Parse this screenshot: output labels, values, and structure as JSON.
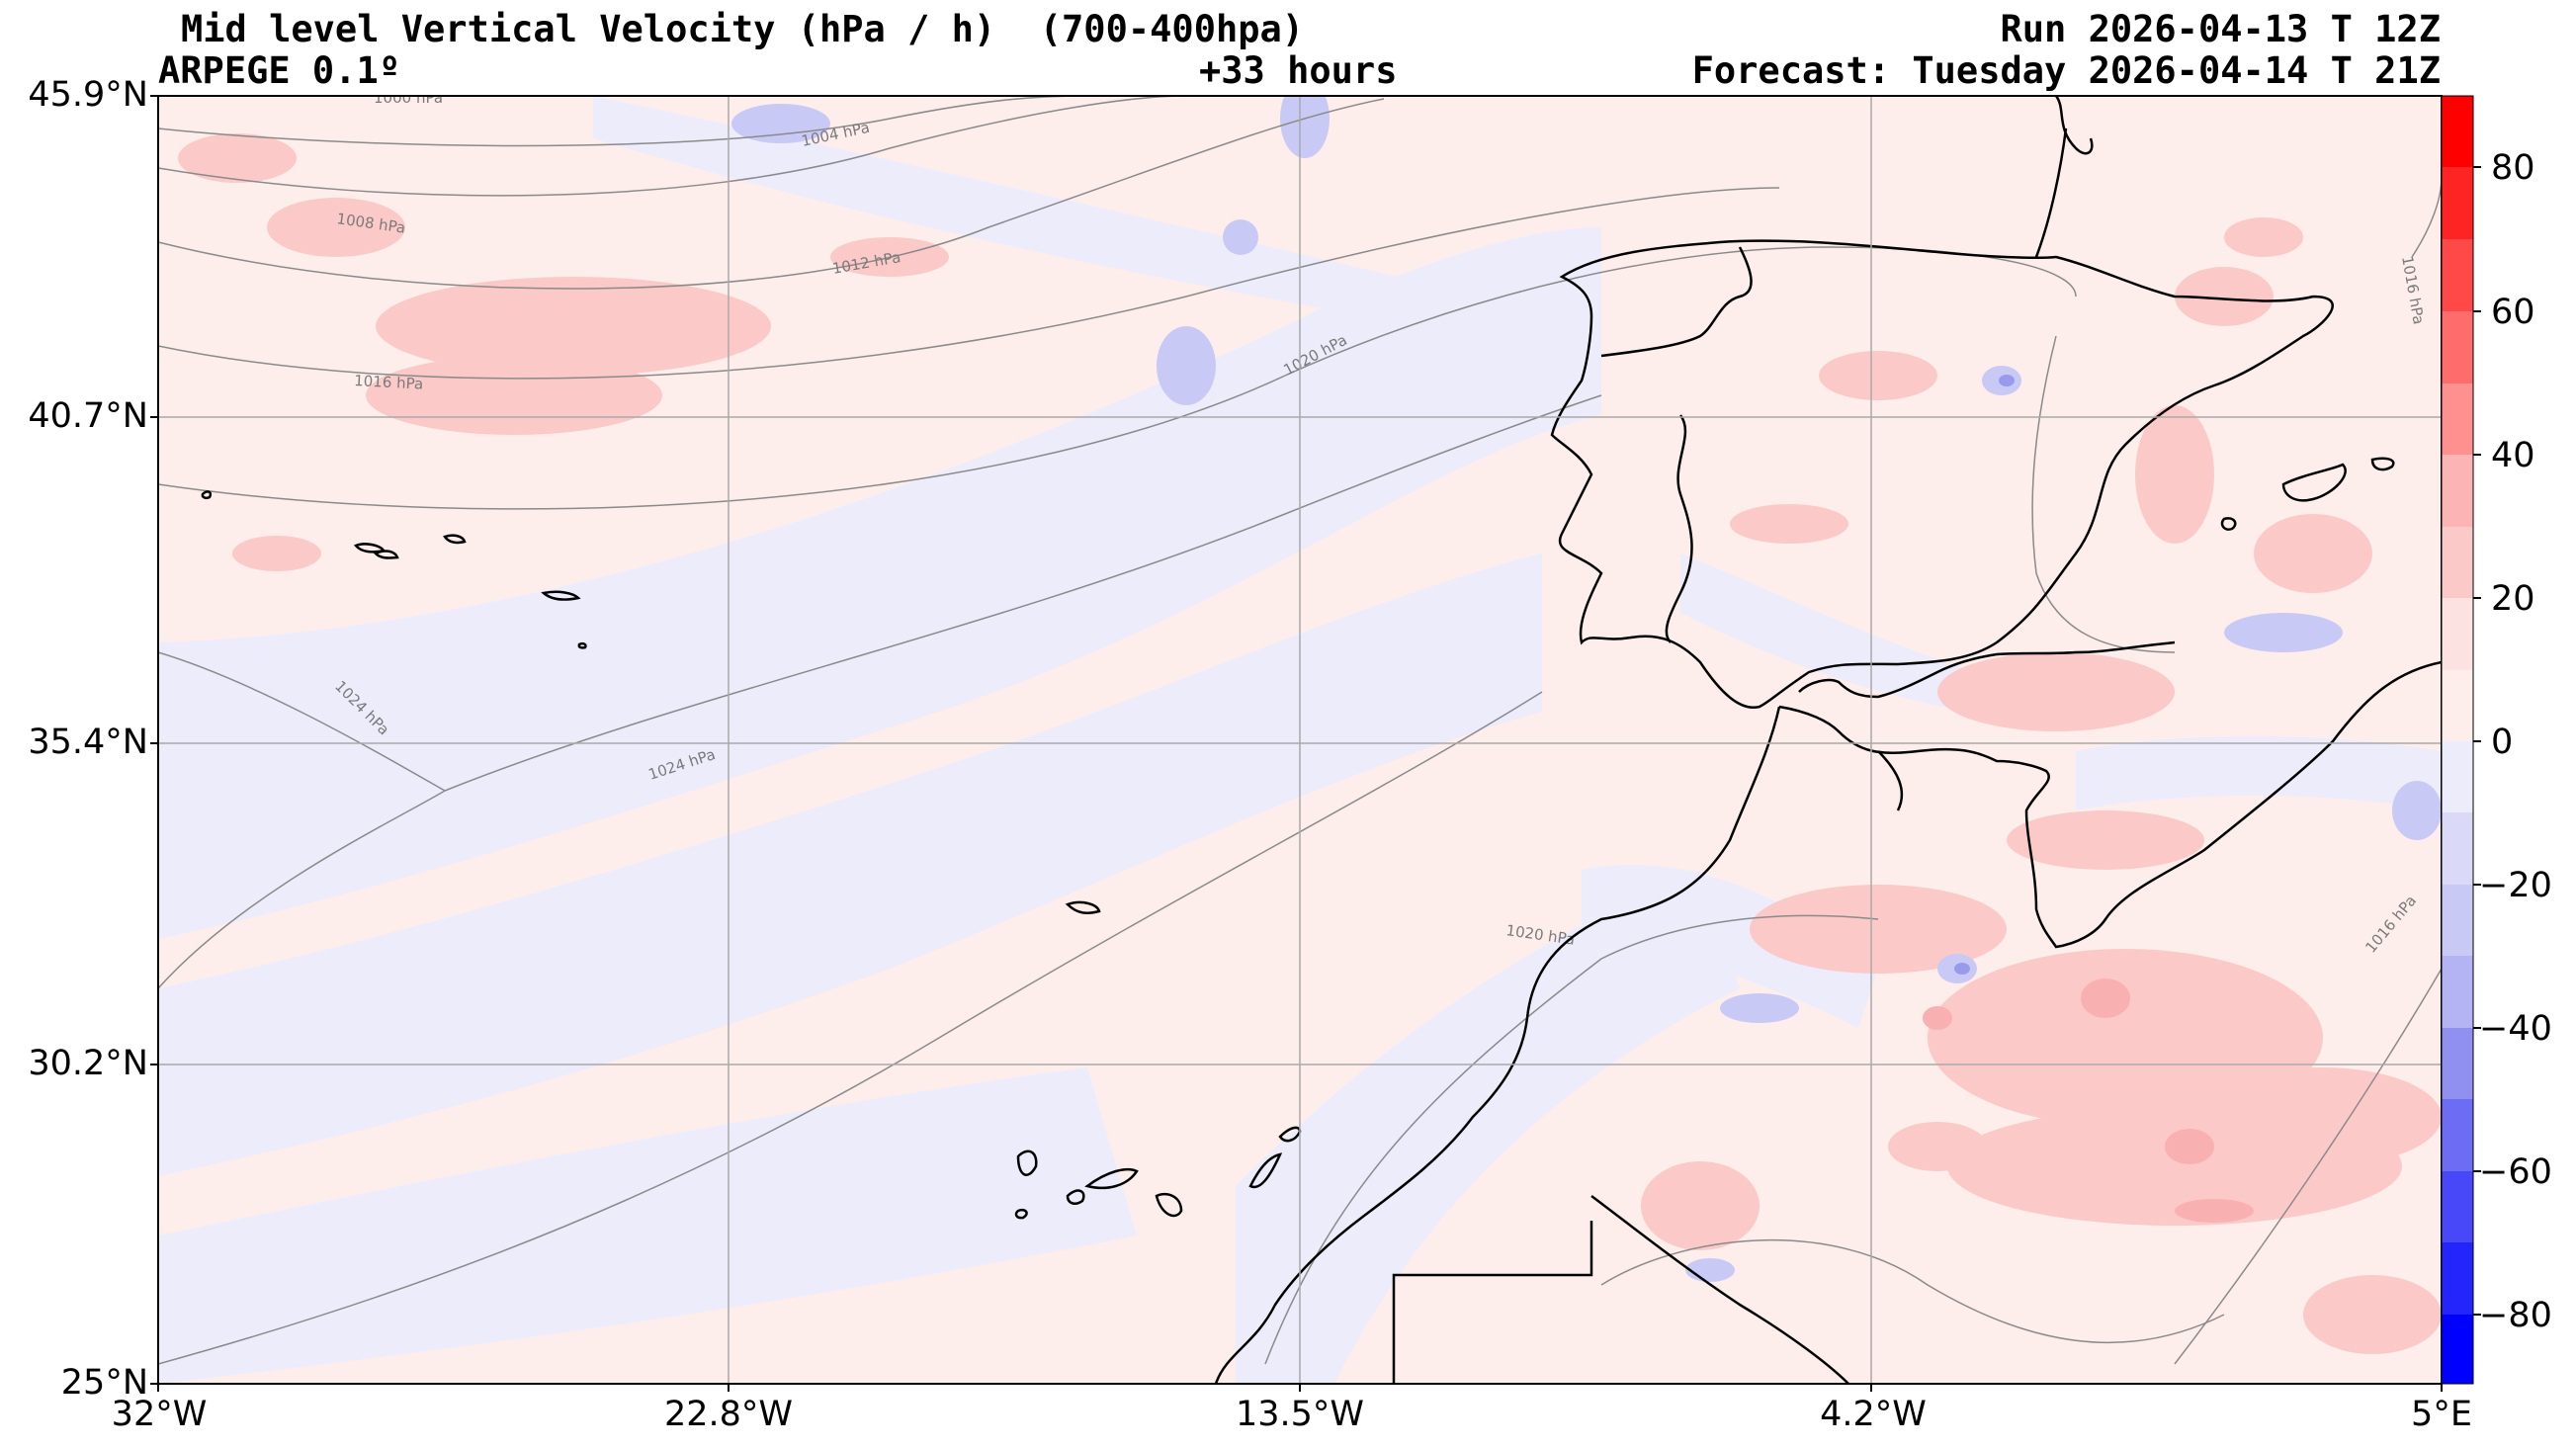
{
  "header": {
    "title": "Mid level Vertical Velocity (hPa / h)  (700-400hpa)",
    "model": "ARPEGE 0.1º",
    "lead_time": "+33 hours",
    "run": "Run 2026-04-13 T 12Z",
    "forecast": "Forecast: Tuesday 2026-04-14 T 21Z"
  },
  "axes": {
    "lat_ticks": [
      "45.9°N",
      "40.7°N",
      "35.4°N",
      "30.2°N",
      "25°N"
    ],
    "lon_ticks": [
      "32°W",
      "22.8°W",
      "13.5°W",
      "4.2°W",
      "5°E"
    ]
  },
  "colorbar": {
    "ticks": [
      "80",
      "60",
      "40",
      "20",
      "0",
      "−20",
      "−40",
      "−60",
      "−80"
    ],
    "range": [
      -90,
      90
    ]
  },
  "isobar_labels": [
    "1000 hPa",
    "1004 hPa",
    "1008 hPa",
    "1012 hPa",
    "1016 hPa",
    "1020 hPa",
    "1024 hPa",
    "1024 hPa",
    "1020 hPa",
    "1016 hPa",
    "1016 hPa"
  ],
  "colors": {
    "positive": "#ff0000",
    "negative": "#0000ff",
    "neutral_pos": "#fdecea",
    "neutral_neg": "#eeeefc",
    "coast": "#000000",
    "isobar": "#8a8a8a",
    "grid": "#a0a0a0"
  }
}
